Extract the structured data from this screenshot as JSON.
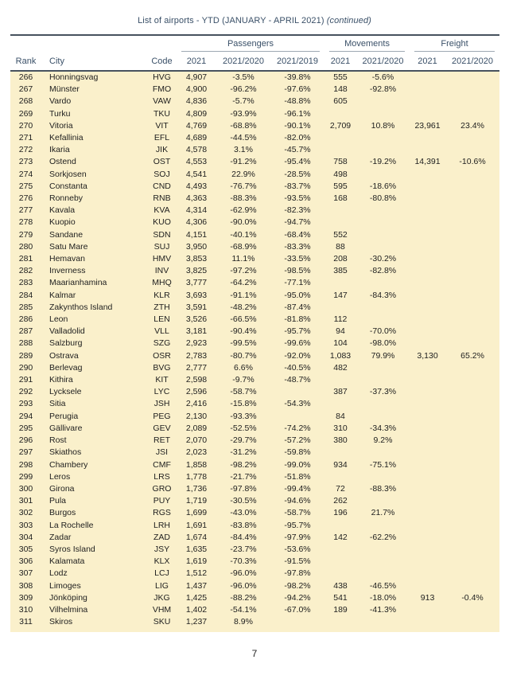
{
  "page": {
    "title": "List of airports - YTD (JANUARY - APRIL 2021)",
    "title_suffix": "(continued)",
    "page_number": "7"
  },
  "colors": {
    "row_bg": "#FAF0CB",
    "header_text": "#3A5068",
    "body_text": "#1E1E1E",
    "rule_dark": "#47525E",
    "rule_light": "#9DA8B2",
    "page_bg": "#FFFFFF"
  },
  "table": {
    "groups": [
      {
        "label": "Passengers",
        "columns": 3
      },
      {
        "label": "Movements",
        "columns": 2
      },
      {
        "label": "Freight",
        "columns": 2
      }
    ],
    "columns": [
      "Rank",
      "City",
      "Code",
      "2021",
      "2021/2020",
      "2021/2019",
      "2021",
      "2021/2020",
      "2021",
      "2021/2020"
    ],
    "column_keys": [
      "rank",
      "city",
      "code",
      "passengers-2021",
      "passengers-2021-2020",
      "passengers-2021-2019",
      "movements-2021",
      "movements-2021-2020",
      "freight-2021",
      "freight-2021-2020"
    ],
    "rows": [
      [
        "266",
        "Honningsvag",
        "HVG",
        "4,907",
        "-3.5%",
        "-39.8%",
        "555",
        "-5.6%",
        "",
        ""
      ],
      [
        "267",
        "Münster",
        "FMO",
        "4,900",
        "-96.2%",
        "-97.6%",
        "148",
        "-92.8%",
        "",
        ""
      ],
      [
        "268",
        "Vardo",
        "VAW",
        "4,836",
        "-5.7%",
        "-48.8%",
        "605",
        "",
        "",
        ""
      ],
      [
        "269",
        "Turku",
        "TKU",
        "4,809",
        "-93.9%",
        "-96.1%",
        "",
        "",
        "",
        ""
      ],
      [
        "270",
        "Vitoria",
        "VIT",
        "4,769",
        "-68.8%",
        "-90.1%",
        "2,709",
        "10.8%",
        "23,961",
        "23.4%"
      ],
      [
        "271",
        "Kefallinia",
        "EFL",
        "4,689",
        "-44.5%",
        "-82.0%",
        "",
        "",
        "",
        ""
      ],
      [
        "272",
        "Ikaria",
        "JIK",
        "4,578",
        "3.1%",
        "-45.7%",
        "",
        "",
        "",
        ""
      ],
      [
        "273",
        "Ostend",
        "OST",
        "4,553",
        "-91.2%",
        "-95.4%",
        "758",
        "-19.2%",
        "14,391",
        "-10.6%"
      ],
      [
        "274",
        "Sorkjosen",
        "SOJ",
        "4,541",
        "22.9%",
        "-28.5%",
        "498",
        "",
        "",
        ""
      ],
      [
        "275",
        "Constanta",
        "CND",
        "4,493",
        "-76.7%",
        "-83.7%",
        "595",
        "-18.6%",
        "",
        ""
      ],
      [
        "276",
        "Ronneby",
        "RNB",
        "4,363",
        "-88.3%",
        "-93.5%",
        "168",
        "-80.8%",
        "",
        ""
      ],
      [
        "277",
        "Kavala",
        "KVA",
        "4,314",
        "-62.9%",
        "-82.3%",
        "",
        "",
        "",
        ""
      ],
      [
        "278",
        "Kuopio",
        "KUO",
        "4,306",
        "-90.0%",
        "-94.7%",
        "",
        "",
        "",
        ""
      ],
      [
        "279",
        "Sandane",
        "SDN",
        "4,151",
        "-40.1%",
        "-68.4%",
        "552",
        "",
        "",
        ""
      ],
      [
        "280",
        "Satu Mare",
        "SUJ",
        "3,950",
        "-68.9%",
        "-83.3%",
        "88",
        "",
        "",
        ""
      ],
      [
        "281",
        "Hemavan",
        "HMV",
        "3,853",
        "11.1%",
        "-33.5%",
        "208",
        "-30.2%",
        "",
        ""
      ],
      [
        "282",
        "Inverness",
        "INV",
        "3,825",
        "-97.2%",
        "-98.5%",
        "385",
        "-82.8%",
        "",
        ""
      ],
      [
        "283",
        "Maarianhamina",
        "MHQ",
        "3,777",
        "-64.2%",
        "-77.1%",
        "",
        "",
        "",
        ""
      ],
      [
        "284",
        "Kalmar",
        "KLR",
        "3,693",
        "-91.1%",
        "-95.0%",
        "147",
        "-84.3%",
        "",
        ""
      ],
      [
        "285",
        "Zakynthos Island",
        "ZTH",
        "3,591",
        "-48.2%",
        "-87.4%",
        "",
        "",
        "",
        ""
      ],
      [
        "286",
        "Leon",
        "LEN",
        "3,526",
        "-66.5%",
        "-81.8%",
        "112",
        "",
        "",
        ""
      ],
      [
        "287",
        "Valladolid",
        "VLL",
        "3,181",
        "-90.4%",
        "-95.7%",
        "94",
        "-70.0%",
        "",
        ""
      ],
      [
        "288",
        "Salzburg",
        "SZG",
        "2,923",
        "-99.5%",
        "-99.6%",
        "104",
        "-98.0%",
        "",
        ""
      ],
      [
        "289",
        "Ostrava",
        "OSR",
        "2,783",
        "-80.7%",
        "-92.0%",
        "1,083",
        "79.9%",
        "3,130",
        "65.2%"
      ],
      [
        "290",
        "Berlevag",
        "BVG",
        "2,777",
        "6.6%",
        "-40.5%",
        "482",
        "",
        "",
        ""
      ],
      [
        "291",
        "Kithira",
        "KIT",
        "2,598",
        "-9.7%",
        "-48.7%",
        "",
        "",
        "",
        ""
      ],
      [
        "292",
        "Lycksele",
        "LYC",
        "2,596",
        "-58.7%",
        "",
        "387",
        "-37.3%",
        "",
        ""
      ],
      [
        "293",
        "Sitia",
        "JSH",
        "2,416",
        "-15.8%",
        "-54.3%",
        "",
        "",
        "",
        ""
      ],
      [
        "294",
        "Perugia",
        "PEG",
        "2,130",
        "-93.3%",
        "",
        "84",
        "",
        "",
        ""
      ],
      [
        "295",
        "Gällivare",
        "GEV",
        "2,089",
        "-52.5%",
        "-74.2%",
        "310",
        "-34.3%",
        "",
        ""
      ],
      [
        "296",
        "Rost",
        "RET",
        "2,070",
        "-29.7%",
        "-57.2%",
        "380",
        "9.2%",
        "",
        ""
      ],
      [
        "297",
        "Skiathos",
        "JSI",
        "2,023",
        "-31.2%",
        "-59.8%",
        "",
        "",
        "",
        ""
      ],
      [
        "298",
        "Chambery",
        "CMF",
        "1,858",
        "-98.2%",
        "-99.0%",
        "934",
        "-75.1%",
        "",
        ""
      ],
      [
        "299",
        "Leros",
        "LRS",
        "1,778",
        "-21.7%",
        "-51.8%",
        "",
        "",
        "",
        ""
      ],
      [
        "300",
        "Girona",
        "GRO",
        "1,736",
        "-97.8%",
        "-99.4%",
        "72",
        "-88.3%",
        "",
        ""
      ],
      [
        "301",
        "Pula",
        "PUY",
        "1,719",
        "-30.5%",
        "-94.6%",
        "262",
        "",
        "",
        ""
      ],
      [
        "302",
        "Burgos",
        "RGS",
        "1,699",
        "-43.0%",
        "-58.7%",
        "196",
        "21.7%",
        "",
        ""
      ],
      [
        "303",
        "La Rochelle",
        "LRH",
        "1,691",
        "-83.8%",
        "-95.7%",
        "",
        "",
        "",
        ""
      ],
      [
        "304",
        "Zadar",
        "ZAD",
        "1,674",
        "-84.4%",
        "-97.9%",
        "142",
        "-62.2%",
        "",
        ""
      ],
      [
        "305",
        "Syros Island",
        "JSY",
        "1,635",
        "-23.7%",
        "-53.6%",
        "",
        "",
        "",
        ""
      ],
      [
        "306",
        "Kalamata",
        "KLX",
        "1,619",
        "-70.3%",
        "-91.5%",
        "",
        "",
        "",
        ""
      ],
      [
        "307",
        "Lodz",
        "LCJ",
        "1,512",
        "-96.0%",
        "-97.8%",
        "",
        "",
        "",
        ""
      ],
      [
        "308",
        "Limoges",
        "LIG",
        "1,437",
        "-96.0%",
        "-98.2%",
        "438",
        "-46.5%",
        "",
        ""
      ],
      [
        "309",
        "Jönköping",
        "JKG",
        "1,425",
        "-88.2%",
        "-94.2%",
        "541",
        "-18.0%",
        "913",
        "-0.4%"
      ],
      [
        "310",
        "Vilhelmina",
        "VHM",
        "1,402",
        "-54.1%",
        "-67.0%",
        "189",
        "-41.3%",
        "",
        ""
      ],
      [
        "311",
        "Skiros",
        "SKU",
        "1,237",
        "8.9%",
        "",
        "",
        "",
        "",
        ""
      ]
    ]
  }
}
